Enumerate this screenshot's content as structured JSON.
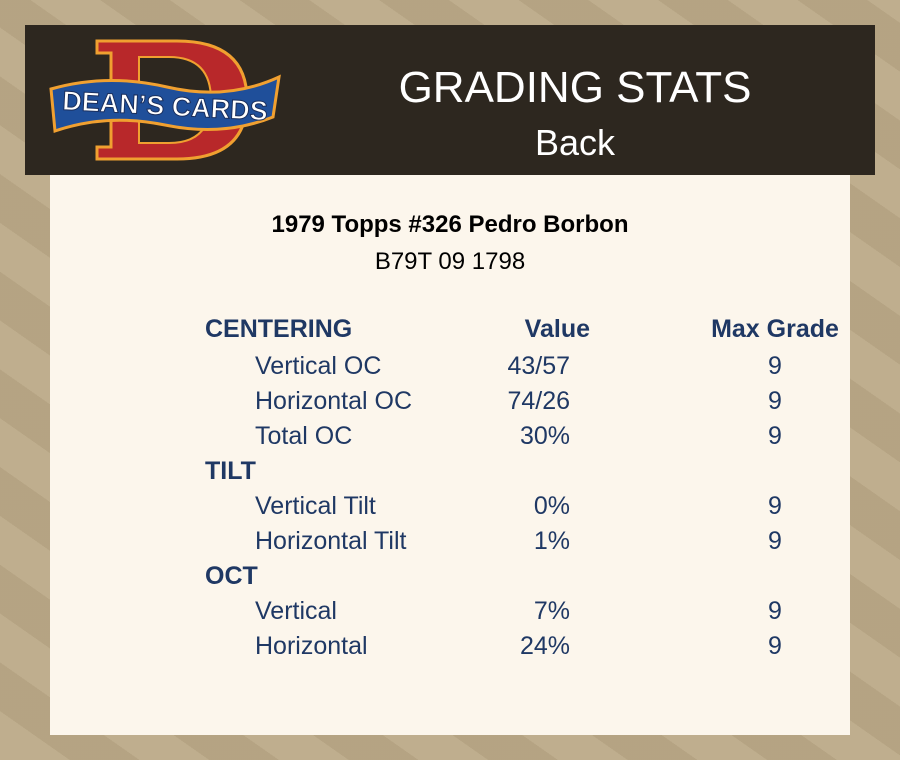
{
  "header": {
    "logo_text": "DEAN'S CARDS",
    "title": "GRADING STATS",
    "subtitle": "Back"
  },
  "card": {
    "title": "1979 Topps #326 Pedro Borbon",
    "code": "B79T 09 1798"
  },
  "columns": {
    "value": "Value",
    "max": "Max Grade"
  },
  "sections": [
    {
      "name": "CENTERING",
      "items": [
        {
          "label": "Vertical OC",
          "value": "43/57",
          "max": "9"
        },
        {
          "label": "Horizontal OC",
          "value": "74/26",
          "max": "9"
        },
        {
          "label": "Total OC",
          "value": "30%",
          "max": "9"
        }
      ]
    },
    {
      "name": "TILT",
      "items": [
        {
          "label": "Vertical Tilt",
          "value": "0%",
          "max": "9"
        },
        {
          "label": "Horizontal Tilt",
          "value": "1%",
          "max": "9"
        }
      ]
    },
    {
      "name": "OCT",
      "items": [
        {
          "label": "Vertical",
          "value": "7%",
          "max": "9"
        },
        {
          "label": "Horizontal",
          "value": "24%",
          "max": "9"
        }
      ]
    }
  ],
  "colors": {
    "text": "#1f3864",
    "header_bg": "#2d271f",
    "panel_bg": "#fcf6ec",
    "logo_red": "#b8282a",
    "logo_blue": "#1f4f9a",
    "logo_orange": "#f0a030"
  }
}
